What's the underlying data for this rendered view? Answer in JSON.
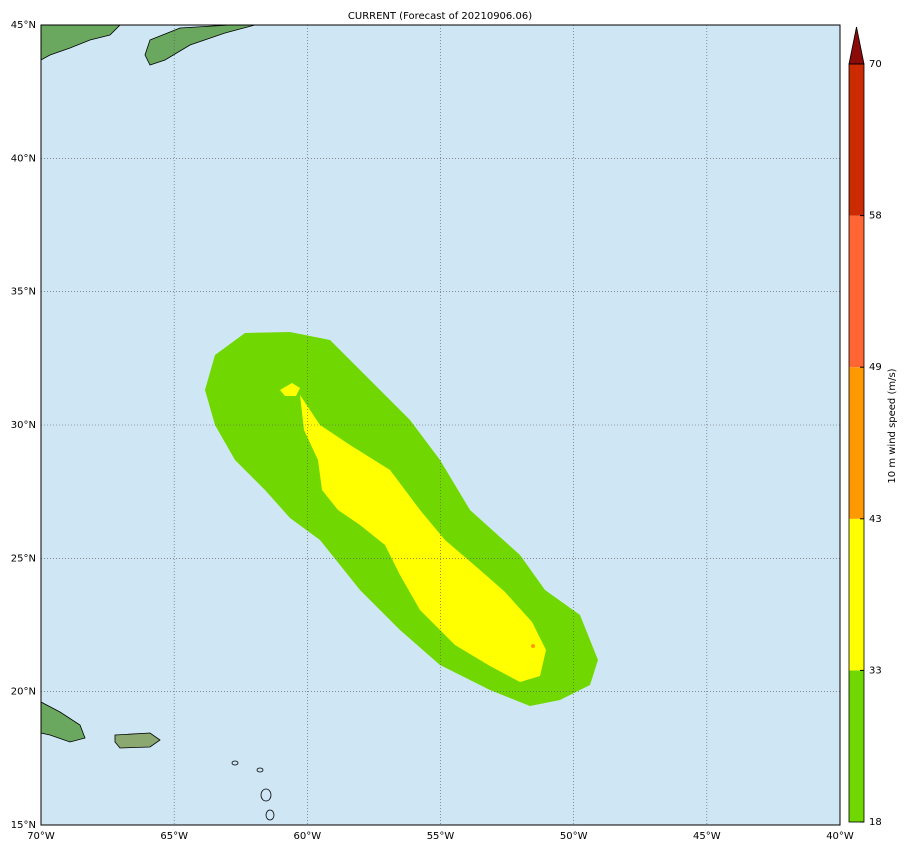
{
  "map": {
    "title": "CURRENT (Forecast of 20210906.06)",
    "xlim": [
      -70,
      -40
    ],
    "ylim": [
      15,
      45
    ],
    "xticks": [
      {
        "value": -70,
        "label": "70°W"
      },
      {
        "value": -65,
        "label": "65°W"
      },
      {
        "value": -60,
        "label": "60°W"
      },
      {
        "value": -55,
        "label": "55°W"
      },
      {
        "value": -50,
        "label": "50°W"
      },
      {
        "value": -45,
        "label": "45°W"
      },
      {
        "value": -40,
        "label": "40°W"
      }
    ],
    "yticks": [
      {
        "value": 15,
        "label": "15°N"
      },
      {
        "value": 20,
        "label": "20°N"
      },
      {
        "value": 25,
        "label": "25°N"
      },
      {
        "value": 30,
        "label": "30°N"
      },
      {
        "value": 35,
        "label": "35°N"
      },
      {
        "value": 40,
        "label": "40°N"
      },
      {
        "value": 45,
        "label": "45°N"
      }
    ],
    "grid": true,
    "colorbar": {
      "label": "10 m wind speed (m/s)",
      "levels": [
        18,
        33,
        43,
        49,
        58,
        70
      ],
      "colors": [
        "#70d800",
        "#ffff00",
        "#ff9900",
        "#ff6633",
        "#cc2a00"
      ],
      "extend_color": "#8b0a0a"
    }
  }
}
